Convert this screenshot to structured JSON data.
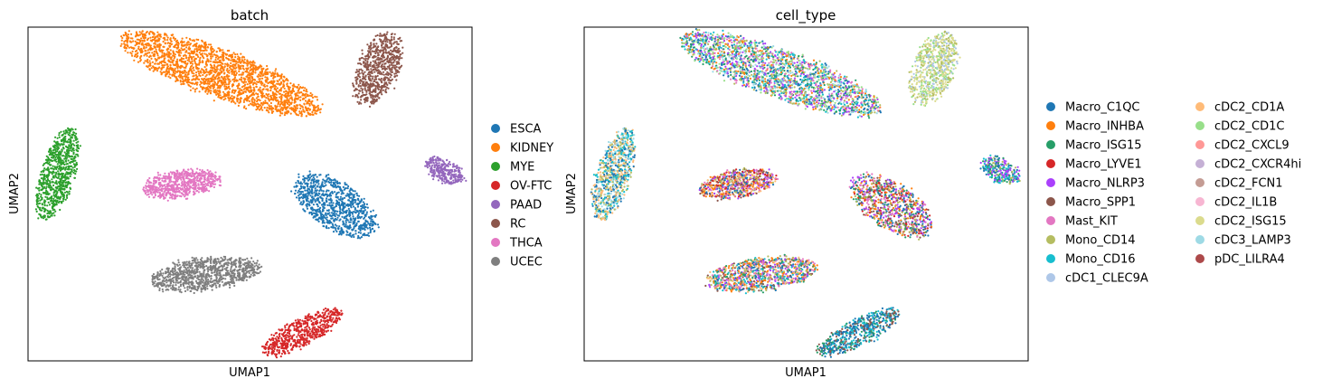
{
  "chart_data": [
    {
      "type": "scatter",
      "title": "batch",
      "xlabel": "UMAP1",
      "ylabel": "UMAP2",
      "xlim": [
        -12,
        12
      ],
      "ylim": [
        -10,
        10
      ],
      "grid": false,
      "legend_position": "right",
      "legend_title": "",
      "series": [
        {
          "name": "ESCA",
          "color": "#1f77b4"
        },
        {
          "name": "KIDNEY",
          "color": "#ff7f0e"
        },
        {
          "name": "MYE",
          "color": "#2ca02c"
        },
        {
          "name": "OV-FTC",
          "color": "#d62728"
        },
        {
          "name": "PAAD",
          "color": "#9467bd"
        },
        {
          "name": "RC",
          "color": "#8c564b"
        },
        {
          "name": "THCA",
          "color": "#e377c2"
        },
        {
          "name": "UCEC",
          "color": "#7f7f7f"
        }
      ],
      "clusters": [
        {
          "series": "KIDNEY",
          "cx": -1.6,
          "cy": 7.2,
          "rx": 5.8,
          "ry": 1.4,
          "angle": -22,
          "n": 2200
        },
        {
          "series": "RC",
          "cx": 6.9,
          "cy": 7.5,
          "rx": 2.3,
          "ry": 1.1,
          "angle": 70,
          "n": 700
        },
        {
          "series": "MYE",
          "cx": -10.4,
          "cy": 1.2,
          "rx": 2.8,
          "ry": 0.9,
          "angle": 75,
          "n": 800
        },
        {
          "series": "THCA",
          "cx": -3.7,
          "cy": 0.6,
          "rx": 2.1,
          "ry": 0.8,
          "angle": 10,
          "n": 700
        },
        {
          "series": "PAAD",
          "cx": 10.5,
          "cy": 1.4,
          "rx": 1.1,
          "ry": 0.65,
          "angle": -30,
          "n": 300
        },
        {
          "series": "ESCA",
          "cx": 4.6,
          "cy": -0.7,
          "rx": 2.6,
          "ry": 1.3,
          "angle": -38,
          "n": 900
        },
        {
          "series": "UCEC",
          "cx": -2.4,
          "cy": -4.8,
          "rx": 3.0,
          "ry": 0.95,
          "angle": 8,
          "n": 1000
        },
        {
          "series": "OV-FTC",
          "cx": 2.8,
          "cy": -8.3,
          "rx": 2.5,
          "ry": 0.75,
          "angle": 30,
          "n": 600
        }
      ]
    },
    {
      "type": "scatter",
      "title": "cell_type",
      "xlabel": "UMAP1",
      "ylabel": "UMAP2",
      "xlim": [
        -12,
        12
      ],
      "ylim": [
        -10,
        10
      ],
      "grid": false,
      "legend_position": "right",
      "legend_columns": 2,
      "series": [
        {
          "name": "Macro_C1QC",
          "color": "#1f77b4"
        },
        {
          "name": "Macro_INHBA",
          "color": "#ff7f0e"
        },
        {
          "name": "Macro_ISG15",
          "color": "#279e68"
        },
        {
          "name": "Macro_LYVE1",
          "color": "#d62728"
        },
        {
          "name": "Macro_NLRP3",
          "color": "#aa40fc"
        },
        {
          "name": "Macro_SPP1",
          "color": "#8c564b"
        },
        {
          "name": "Mast_KIT",
          "color": "#e377c2"
        },
        {
          "name": "Mono_CD14",
          "color": "#b5bd61"
        },
        {
          "name": "Mono_CD16",
          "color": "#17becf"
        },
        {
          "name": "cDC1_CLEC9A",
          "color": "#aec7e8"
        },
        {
          "name": "cDC2_CD1A",
          "color": "#ffbb78"
        },
        {
          "name": "cDC2_CD1C",
          "color": "#98df8a"
        },
        {
          "name": "cDC2_CXCL9",
          "color": "#ff9896"
        },
        {
          "name": "cDC2_CXCR4hi",
          "color": "#c5b0d5"
        },
        {
          "name": "cDC2_FCN1",
          "color": "#c49c94"
        },
        {
          "name": "cDC2_IL1B",
          "color": "#f7b6d2"
        },
        {
          "name": "cDC2_ISG15",
          "color": "#dbdb8d"
        },
        {
          "name": "cDC3_LAMP3",
          "color": "#9edae5"
        },
        {
          "name": "pDC_LILRA4",
          "color": "#ad494a"
        }
      ],
      "clusters": [
        {
          "mix": [
            "Mono_CD16",
            "Macro_ISG15",
            "Macro_C1QC",
            "Mono_CD14",
            "cDC3_LAMP3",
            "Macro_NLRP3",
            "Macro_INHBA",
            "cDC2_CD1C",
            "Mast_KIT"
          ],
          "cx": -1.4,
          "cy": 7.2,
          "rx": 5.8,
          "ry": 1.4,
          "angle": -22,
          "n": 2200
        },
        {
          "mix": [
            "cDC2_ISG15",
            "cDC2_CD1C",
            "cDC1_CLEC9A",
            "cDC2_ISG15",
            "Mono_CD14"
          ],
          "cx": 6.9,
          "cy": 7.5,
          "rx": 2.3,
          "ry": 1.1,
          "angle": 70,
          "n": 700
        },
        {
          "mix": [
            "cDC3_LAMP3",
            "Mono_CD16",
            "Mono_CD14",
            "Macro_C1QC",
            "cDC2_CD1A"
          ],
          "cx": -10.4,
          "cy": 1.2,
          "rx": 2.8,
          "ry": 0.9,
          "angle": 75,
          "n": 800
        },
        {
          "mix": [
            "Macro_SPP1",
            "Macro_INHBA",
            "Macro_NLRP3",
            "Mono_CD14",
            "Macro_C1QC",
            "Macro_LYVE1",
            "cDC2_CD1A",
            "Mast_KIT"
          ],
          "cx": -3.7,
          "cy": 0.6,
          "rx": 2.1,
          "ry": 0.8,
          "angle": 10,
          "n": 700
        },
        {
          "mix": [
            "Macro_C1QC",
            "Macro_ISG15",
            "Mono_CD16",
            "Mono_CD14",
            "Macro_NLRP3"
          ],
          "cx": 10.5,
          "cy": 1.4,
          "rx": 1.1,
          "ry": 0.65,
          "angle": -30,
          "n": 300
        },
        {
          "mix": [
            "Macro_NLRP3",
            "Macro_LYVE1",
            "Mast_KIT",
            "Macro_SPP1",
            "Macro_ISG15",
            "Macro_C1QC",
            "Mono_CD14",
            "Macro_INHBA"
          ],
          "cx": 4.6,
          "cy": -0.7,
          "rx": 2.6,
          "ry": 1.3,
          "angle": -38,
          "n": 900
        },
        {
          "mix": [
            "Mono_CD14",
            "Macro_C1QC",
            "Macro_NLRP3",
            "Mast_KIT",
            "Macro_ISG15",
            "Macro_INHBA",
            "Mono_CD16",
            "Macro_SPP1",
            "cDC2_CD1A"
          ],
          "cx": -2.4,
          "cy": -4.8,
          "rx": 3.0,
          "ry": 0.95,
          "angle": 8,
          "n": 1000
        },
        {
          "mix": [
            "Macro_C1QC",
            "Macro_C1QC",
            "Macro_SPP1",
            "Mono_CD16",
            "Macro_ISG15"
          ],
          "cx": 2.8,
          "cy": -8.3,
          "rx": 2.5,
          "ry": 0.75,
          "angle": 30,
          "n": 600
        }
      ]
    }
  ]
}
